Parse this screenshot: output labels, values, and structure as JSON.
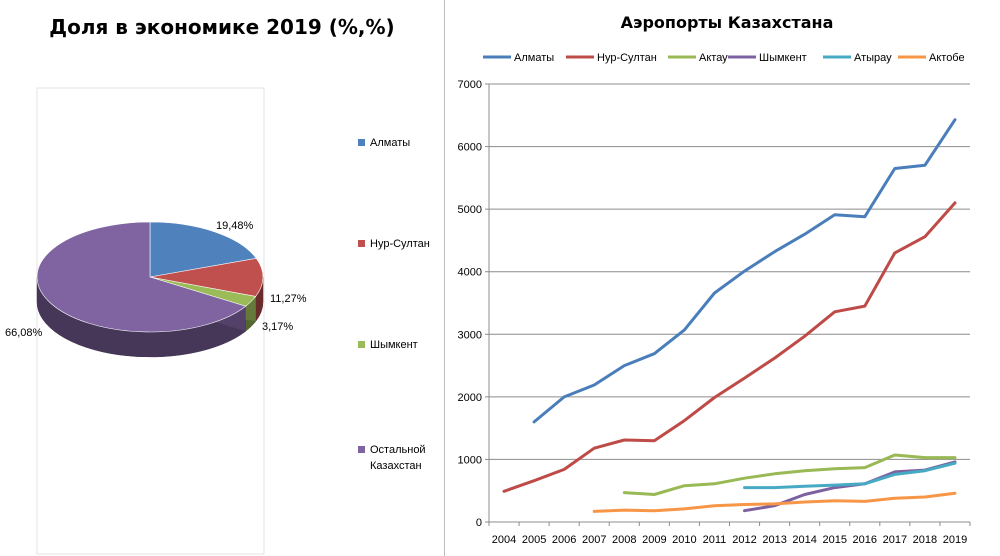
{
  "chart_data": [
    {
      "type": "pie",
      "title": "Доля в экономике 2019 (%,%)",
      "style": "3d",
      "legend_position": "right",
      "categories": [
        "Алматы",
        "Нур-Султан",
        "Шымкент",
        "Остальной Казахстан"
      ],
      "legend_labels": [
        [
          "Алматы"
        ],
        [
          "Нур-Султан"
        ],
        [
          "Шымкент"
        ],
        [
          "Остальной",
          "Казахстан"
        ]
      ],
      "values": [
        19.48,
        11.27,
        3.17,
        66.08
      ],
      "value_labels": [
        "19,48%",
        "11,27%",
        "3,17%",
        "66,08%"
      ],
      "colors": [
        "#4f81bd",
        "#c0504d",
        "#9bbb59",
        "#8064a2"
      ]
    },
    {
      "type": "line",
      "title": "Аэропорты Казахстана",
      "legend_position": "top",
      "grid": true,
      "x": [
        "2004",
        "2005",
        "2006",
        "2007",
        "2008",
        "2009",
        "2010",
        "2011",
        "2012",
        "2013",
        "2014",
        "2015",
        "2016",
        "2017",
        "2018",
        "2019"
      ],
      "ylim": [
        0,
        7000
      ],
      "yticks": [
        "0",
        "1000",
        "2000",
        "3000",
        "4000",
        "5000",
        "6000",
        "7000"
      ],
      "series": [
        {
          "name": "Алматы",
          "color": "#4a7ebb",
          "values": [
            null,
            1600,
            2000,
            2190,
            2500,
            2690,
            3070,
            3660,
            4010,
            4320,
            4600,
            4910,
            4880,
            5650,
            5700,
            6430
          ]
        },
        {
          "name": "Нур-Султан",
          "color": "#be4b48",
          "values": [
            490,
            660,
            840,
            1180,
            1310,
            1300,
            1620,
            1990,
            2300,
            2620,
            2970,
            3360,
            3450,
            4300,
            4560,
            5100
          ]
        },
        {
          "name": "Актау",
          "color": "#98b954",
          "values": [
            null,
            null,
            null,
            null,
            470,
            440,
            580,
            610,
            700,
            770,
            820,
            850,
            870,
            1070,
            1030,
            1030
          ]
        },
        {
          "name": "Шымкент",
          "color": "#7d60a0",
          "values": [
            null,
            null,
            null,
            null,
            null,
            null,
            null,
            null,
            180,
            260,
            440,
            550,
            610,
            800,
            830,
            960
          ]
        },
        {
          "name": "Атырау",
          "color": "#46aac5",
          "values": [
            null,
            null,
            null,
            null,
            null,
            null,
            null,
            null,
            550,
            550,
            570,
            590,
            610,
            760,
            820,
            940
          ]
        },
        {
          "name": "Актобе",
          "color": "#f79646",
          "values": [
            null,
            null,
            null,
            170,
            190,
            180,
            210,
            260,
            280,
            290,
            320,
            340,
            330,
            380,
            400,
            460
          ]
        }
      ]
    }
  ]
}
